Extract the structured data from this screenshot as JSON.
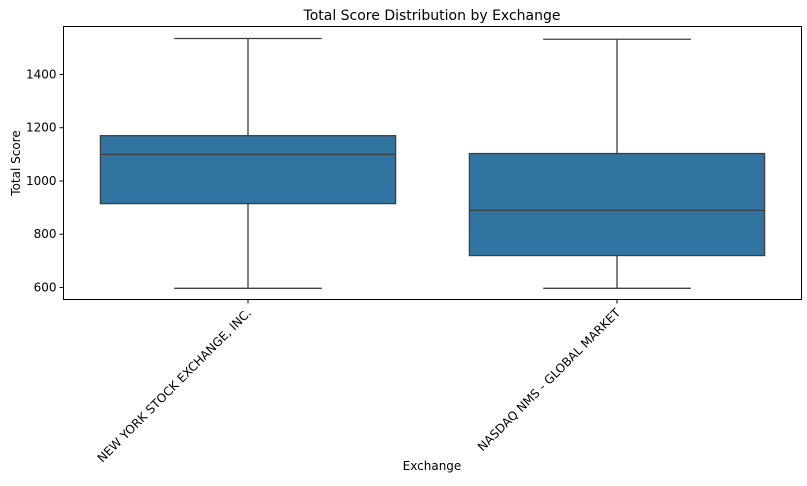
{
  "chart_data": {
    "type": "box",
    "title": "Total Score Distribution by Exchange",
    "xlabel": "Exchange",
    "ylabel": "Total Score",
    "ylim": [
      555,
      1580
    ],
    "yticks": [
      600,
      800,
      1000,
      1200,
      1400
    ],
    "grid": false,
    "categories": [
      "NEW YORK STOCK EXCHANGE, INC.",
      "NASDAQ NMS - GLOBAL MARKET"
    ],
    "boxes": [
      {
        "category": "NEW YORK STOCK EXCHANGE, INC.",
        "whisker_low": 597,
        "q1": 915,
        "median": 1100,
        "q3": 1170,
        "whisker_high": 1535
      },
      {
        "category": "NASDAQ NMS - GLOBAL MARKET",
        "whisker_low": 597,
        "q1": 720,
        "median": 890,
        "q3": 1103,
        "whisker_high": 1532
      }
    ],
    "box_color": "#3274a1",
    "line_color": "#3d3d3d"
  }
}
